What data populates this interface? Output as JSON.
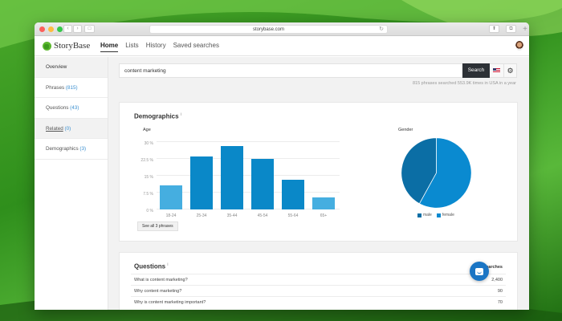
{
  "browser": {
    "url": "storybase.com",
    "lock_icon": "🔒",
    "back_icon": "‹",
    "forward_icon": "›",
    "sidebar_icon": "□",
    "reload_icon": "↻",
    "share_icon": "⬆",
    "tabs_icon": "⧉",
    "new_tab_icon": "+"
  },
  "app": {
    "logo_text": "StoryBase",
    "nav": [
      {
        "label": "Home",
        "active": true
      },
      {
        "label": "Lists"
      },
      {
        "label": "History"
      },
      {
        "label": "Saved searches"
      }
    ]
  },
  "sidebar": {
    "items": [
      {
        "label": "Overview",
        "count": ""
      },
      {
        "label": "Phrases",
        "count": "(815)"
      },
      {
        "label": "Questions",
        "count": "(43)"
      },
      {
        "label": "Related",
        "count": "(0)"
      },
      {
        "label": "Demographics",
        "count": "(3)"
      }
    ]
  },
  "search": {
    "value": "content marketing",
    "button_label": "Search",
    "gear_icon": "⚙",
    "meta": "815 phrases searched 553.9K times in USA in a year"
  },
  "demographics": {
    "title": "Demographics",
    "info_icon": "i",
    "see_all_label": "See all 3 phrases"
  },
  "colors": {
    "bar_dark": "#0a88c8",
    "bar_light": "#45aee0",
    "pie_male": "#0b6ea5",
    "pie_female": "#0a8ad0",
    "accent_link": "#3a8fd0",
    "search_button": "#2d3136"
  },
  "chart_data": [
    {
      "type": "bar",
      "title": "Age",
      "categories": [
        "18-24",
        "25-34",
        "35-44",
        "45-54",
        "55-64",
        "65+"
      ],
      "values": [
        10.8,
        23.4,
        28.1,
        22.5,
        13.3,
        5.3
      ],
      "yticks": [
        "0 %",
        "7.5 %",
        "15 %",
        "22.5 %",
        "30 %"
      ],
      "ylim": [
        0,
        30
      ],
      "xlabel": "",
      "ylabel": "",
      "grid": true
    },
    {
      "type": "pie",
      "title": "Gender",
      "labels": [
        "male",
        "female"
      ],
      "values": [
        42,
        58
      ],
      "legend_position": "bottom"
    }
  ],
  "questions": {
    "title": "Questions",
    "info_icon": "i",
    "column_header": "Searches",
    "rows": [
      {
        "question": "What is content marketing?",
        "searches": "2,400"
      },
      {
        "question": "Why content marketing?",
        "searches": "90"
      },
      {
        "question": "Why is content marketing important?",
        "searches": "70"
      }
    ]
  }
}
